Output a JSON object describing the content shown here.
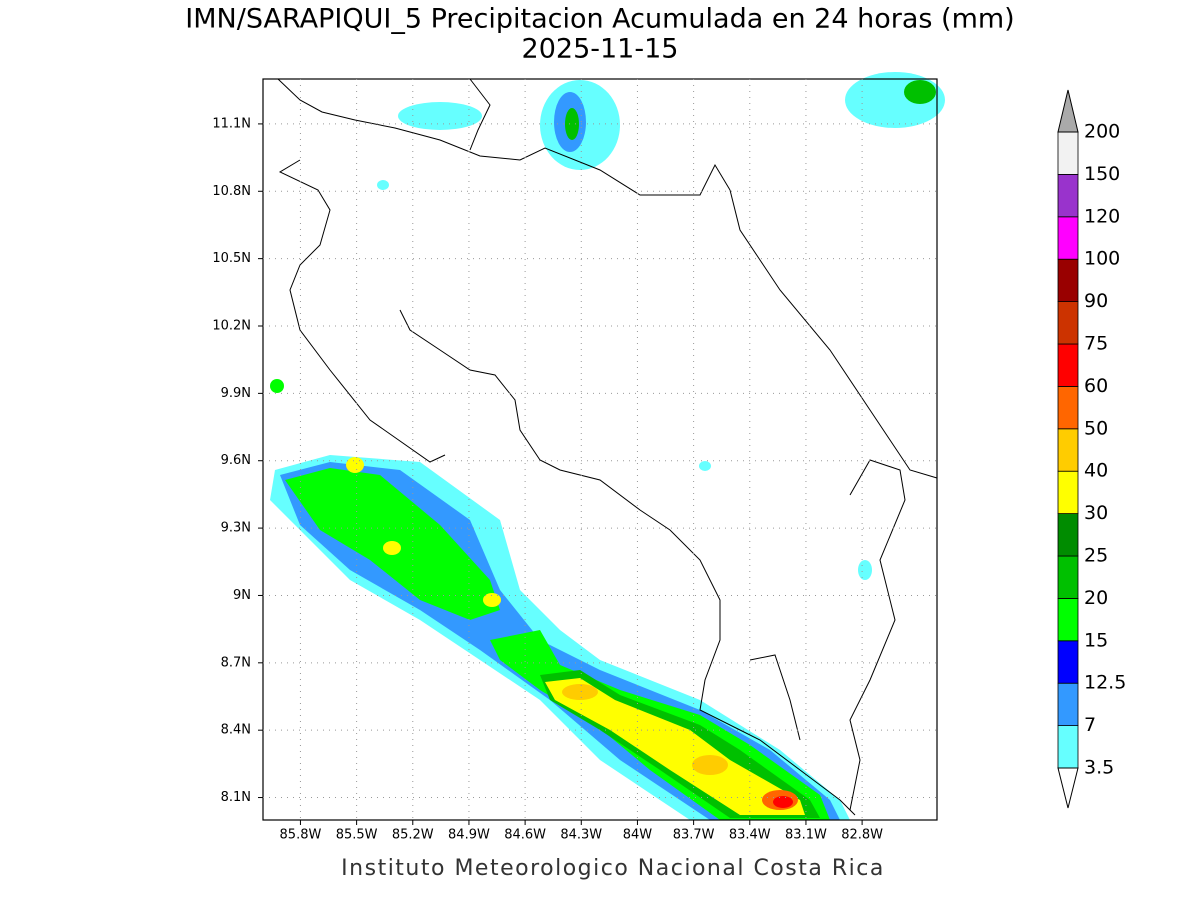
{
  "chart_data": {
    "type": "map",
    "title": "IMN/SARAPIQUI_5 Precipitacion Acumulada en 24 horas (mm)",
    "subtitle": "2025-11-15",
    "credit": "Instituto Meteorologico Nacional Costa Rica",
    "xlim": [
      -86.0,
      -82.4
    ],
    "ylim": [
      8.0,
      11.3
    ],
    "xticks": [
      {
        "value": -85.8,
        "label": "85.8W"
      },
      {
        "value": -85.5,
        "label": "85.5W"
      },
      {
        "value": -85.2,
        "label": "85.2W"
      },
      {
        "value": -84.9,
        "label": "84.9W"
      },
      {
        "value": -84.6,
        "label": "84.6W"
      },
      {
        "value": -84.3,
        "label": "84.3W"
      },
      {
        "value": -84.0,
        "label": "84W"
      },
      {
        "value": -83.7,
        "label": "83.7W"
      },
      {
        "value": -83.4,
        "label": "83.4W"
      },
      {
        "value": -83.1,
        "label": "83.1W"
      },
      {
        "value": -82.8,
        "label": "82.8W"
      }
    ],
    "yticks": [
      {
        "value": 8.1,
        "label": "8.1N"
      },
      {
        "value": 8.4,
        "label": "8.4N"
      },
      {
        "value": 8.7,
        "label": "8.7N"
      },
      {
        "value": 9.0,
        "label": "9N"
      },
      {
        "value": 9.3,
        "label": "9.3N"
      },
      {
        "value": 9.6,
        "label": "9.6N"
      },
      {
        "value": 9.9,
        "label": "9.9N"
      },
      {
        "value": 10.2,
        "label": "10.2N"
      },
      {
        "value": 10.5,
        "label": "10.5N"
      },
      {
        "value": 10.8,
        "label": "10.8N"
      },
      {
        "value": 11.1,
        "label": "11.1N"
      }
    ],
    "grid": true,
    "colorbar": {
      "levels": [
        3.5,
        7,
        12.5,
        15,
        20,
        25,
        30,
        40,
        50,
        60,
        75,
        90,
        100,
        120,
        150,
        200
      ],
      "colors": [
        "#66ffff",
        "#3399ff",
        "#0000ff",
        "#00ff00",
        "#00c000",
        "#008c00",
        "#ffff00",
        "#ffcc00",
        "#ff6600",
        "#ff0000",
        "#cc3300",
        "#990000",
        "#ff00ff",
        "#9933cc",
        "#f2f2f2"
      ],
      "over_color": "#aaaaaa",
      "under_color": "#ffffff"
    }
  }
}
